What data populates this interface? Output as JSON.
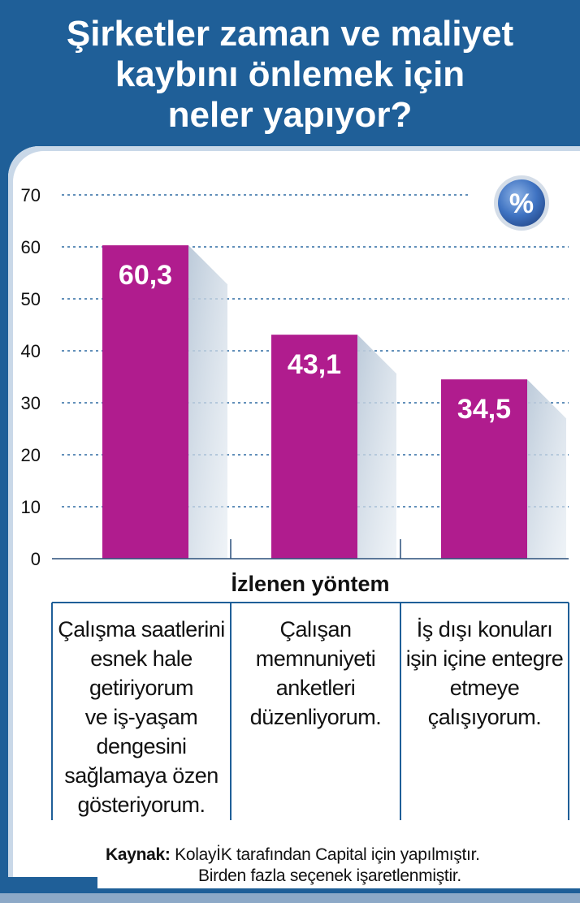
{
  "header": {
    "title_lines": [
      "Şirketler zaman ve maliyet",
      "kaybını önlemek için",
      "neler yapıyor?"
    ]
  },
  "badge": {
    "symbol": "%"
  },
  "colors": {
    "bar": "#b01c8e",
    "frame": "#1f5f98",
    "grid": "#2e6ca4"
  },
  "chart_data": {
    "type": "bar",
    "categories": [
      "Çalışma saatlerini esnek hale getiriyorum ve iş-yaşam dengesini sağlamaya özen gösteriyorum.",
      "Çalışan memnuniyeti anketleri düzenliyorum.",
      "İş dışı konuları işin içine entegre etmeye çalışıyorum."
    ],
    "category_lines": [
      [
        "Çalışma saatlerini",
        "esnek hale",
        "getiriyorum",
        "ve iş-yaşam",
        "dengesini",
        "sağlamaya özen",
        "gösteriyorum."
      ],
      [
        "Çalışan",
        "memnuniyeti",
        "anketleri",
        "düzenliyorum."
      ],
      [
        "İş dışı konuları",
        "işin içine entegre",
        "etmeye",
        "çalışıyorum."
      ]
    ],
    "values": [
      60.3,
      43.1,
      34.5
    ],
    "value_labels": [
      "60,3",
      "43,1",
      "34,5"
    ],
    "yticks": [
      "0",
      "10",
      "20",
      "30",
      "40",
      "50",
      "60",
      "70"
    ],
    "ylim": [
      0,
      70
    ],
    "xlabel": "İzlenen yöntem",
    "grid": true
  },
  "footer": {
    "source_label": "Kaynak:",
    "source_text": "KolayİK tarafından Capital için yapılmıştır.",
    "note": "Birden fazla seçenek işaretlenmiştir."
  }
}
